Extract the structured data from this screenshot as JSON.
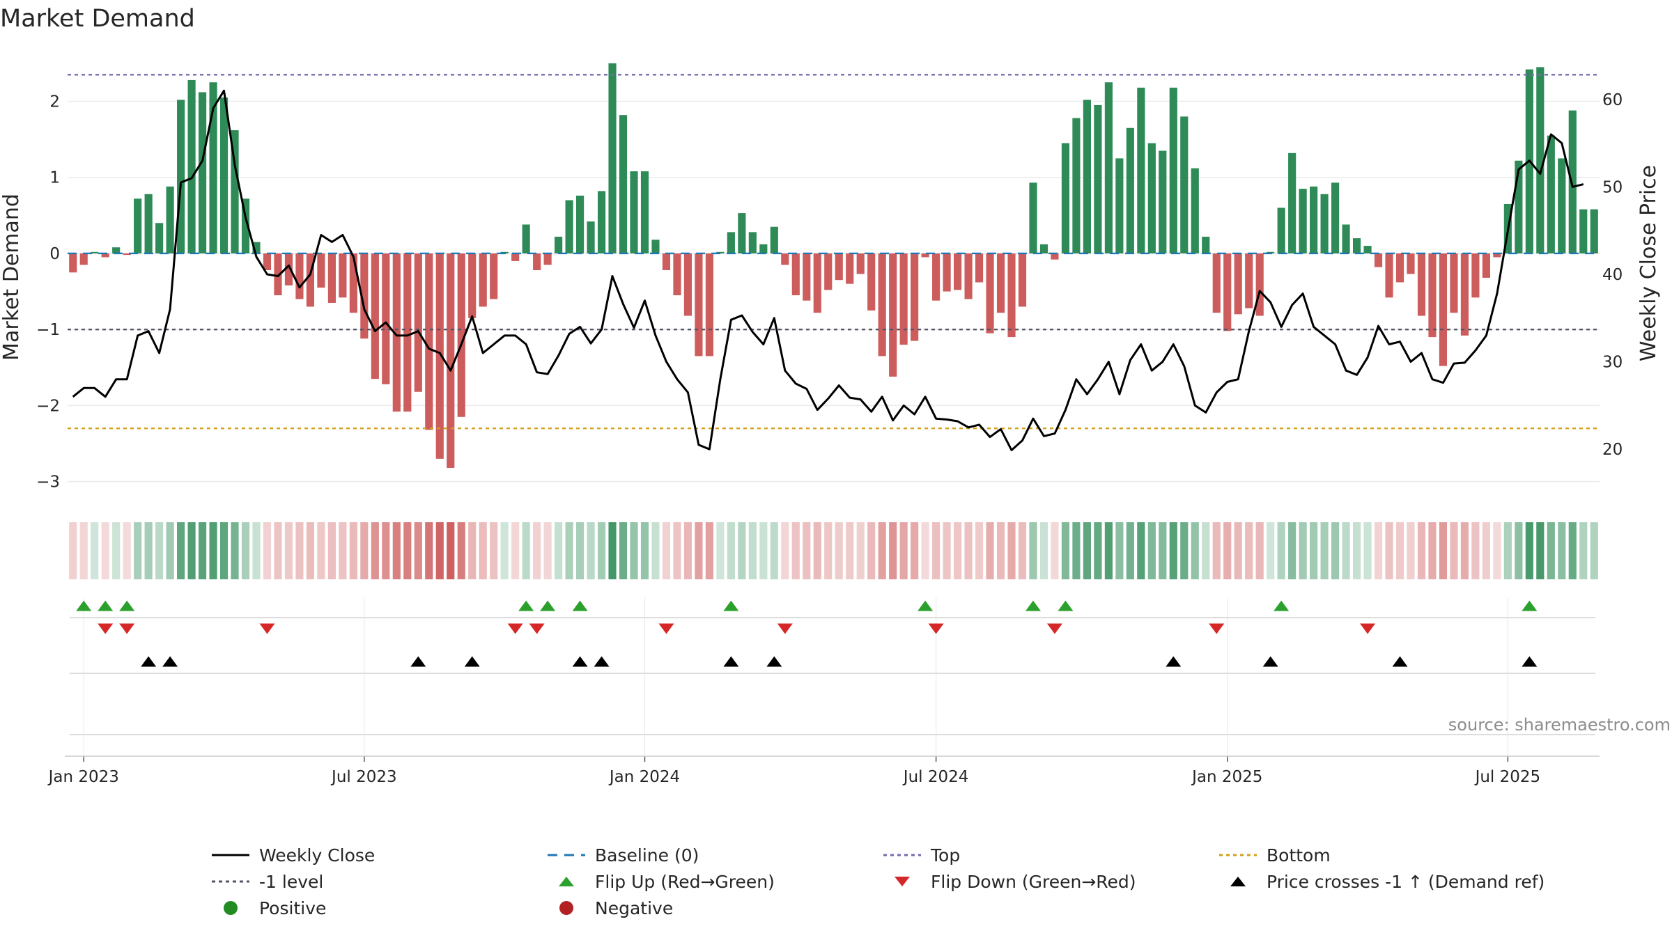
{
  "chart_data": {
    "type": "bar",
    "title": "Market Demand",
    "ylabel": "Market Demand",
    "y2label": "Weekly Close Price",
    "ylim": [
      -3.15,
      2.6
    ],
    "y2lim": [
      15,
      65
    ],
    "yticks": [
      "−3",
      "−2",
      "−1",
      "0",
      "1",
      "2"
    ],
    "y2ticks": [
      "20",
      "30",
      "40",
      "50",
      "60"
    ],
    "xticks": [
      "Jan 2023",
      "Jul 2023",
      "Jan 2024",
      "Jul 2024",
      "Jan 2025",
      "Jul 2025"
    ],
    "levels": {
      "top": 2.35,
      "minus_one": -1,
      "bottom": -2.3,
      "baseline": 0
    },
    "source": "source: sharemaestro.com",
    "colors": {
      "positive": "#2e8b57",
      "negative": "#cd5c5c",
      "close": "#000000",
      "baseline": "#1f77b4",
      "top": "#7b68b0",
      "minus_one": "#555566",
      "bottom": "#d4a017",
      "flip_up": "#2ca02c",
      "flip_down": "#d62728",
      "cross": "#000000"
    },
    "series": [
      {
        "name": "Market Demand",
        "values": [
          -0.25,
          -0.15,
          0.02,
          -0.05,
          0.08,
          -0.02,
          0.72,
          0.78,
          0.4,
          0.88,
          2.02,
          2.28,
          2.12,
          2.25,
          2.05,
          1.62,
          0.72,
          0.15,
          -0.22,
          -0.55,
          -0.42,
          -0.6,
          -0.7,
          -0.45,
          -0.65,
          -0.58,
          -0.78,
          -1.12,
          -1.65,
          -1.72,
          -2.08,
          -2.08,
          -1.82,
          -2.32,
          -2.7,
          -2.82,
          -2.15,
          -0.85,
          -0.7,
          -0.6,
          0.02,
          -0.1,
          0.38,
          -0.22,
          -0.15,
          0.22,
          0.7,
          0.76,
          0.42,
          0.82,
          2.5,
          1.82,
          1.08,
          1.08,
          0.18,
          -0.22,
          -0.55,
          -0.82,
          -1.35,
          -1.35,
          0.02,
          0.28,
          0.53,
          0.28,
          0.12,
          0.35,
          -0.15,
          -0.55,
          -0.62,
          -0.78,
          -0.48,
          -0.35,
          -0.4,
          -0.27,
          -0.75,
          -1.35,
          -1.62,
          -1.2,
          -1.15,
          -0.05,
          -0.62,
          -0.5,
          -0.48,
          -0.6,
          -0.38,
          -1.05,
          -0.78,
          -1.1,
          -0.7,
          0.93,
          0.12,
          -0.08,
          1.45,
          1.78,
          2.02,
          1.95,
          2.25,
          1.25,
          1.65,
          2.18,
          1.45,
          1.35,
          2.18,
          1.8,
          1.12,
          0.22,
          -0.78,
          -1.02,
          -0.8,
          -0.72,
          -0.82,
          0.02,
          0.6,
          1.32,
          0.85,
          0.88,
          0.78,
          0.93,
          0.38,
          0.2,
          0.1,
          -0.18,
          -0.58,
          -0.38,
          -0.27,
          -0.82,
          -1.1,
          -1.48,
          -0.78,
          -1.08,
          -0.58,
          -0.32,
          -0.05,
          0.65,
          1.22,
          2.42,
          2.45,
          1.55,
          1.25,
          1.88,
          0.58,
          0.58
        ]
      },
      {
        "name": "Weekly Close",
        "values": [
          26,
          27,
          27,
          26,
          28,
          28,
          33,
          33.5,
          31,
          36,
          50.5,
          51,
          53,
          59,
          61,
          52.5,
          46.5,
          42,
          40,
          39.8,
          41,
          38.5,
          40,
          44.5,
          43.7,
          44.5,
          42,
          36,
          33.5,
          34.5,
          33,
          33,
          33.5,
          31.5,
          31,
          29,
          32,
          35.2,
          31,
          32,
          33,
          33,
          32,
          28.8,
          28.6,
          30.7,
          33.2,
          34,
          32.1,
          33.7,
          39.8,
          36.6,
          33.9,
          37,
          33,
          30,
          28,
          26.5,
          20.5,
          20,
          28,
          34.8,
          35.3,
          33.4,
          32,
          35,
          29,
          27.5,
          26.9,
          24.5,
          25.8,
          27.3,
          25.9,
          25.7,
          24.3,
          26,
          23.3,
          25,
          24,
          26,
          23.5,
          23.4,
          23.2,
          22.5,
          22.8,
          21.4,
          22.3,
          19.9,
          21,
          23.5,
          21.5,
          21.8,
          24.5,
          28,
          26.3,
          28,
          30,
          26.3,
          30.2,
          32,
          29,
          30,
          32,
          29.5,
          25,
          24.2,
          26.5,
          27.7,
          28,
          33.5,
          38.1,
          36.8,
          34,
          36.5,
          37.8,
          34,
          33,
          32,
          29,
          28.5,
          30.5,
          34.1,
          32,
          32.3,
          30,
          31,
          28,
          27.6,
          29.8,
          29.9,
          31.3,
          33,
          37.8,
          45,
          52,
          53,
          51.5,
          56,
          55,
          50,
          50.3
        ]
      }
    ],
    "flip_up_weeks": [
      1,
      3,
      5,
      42,
      44,
      47,
      61,
      79,
      89,
      92,
      112,
      135
    ],
    "flip_down_weeks": [
      3,
      5,
      18,
      41,
      43,
      55,
      66,
      80,
      91,
      106,
      120
    ],
    "cross_weeks": [
      7,
      9,
      32,
      37,
      47,
      49,
      61,
      65,
      102,
      111,
      123,
      135
    ],
    "legend": [
      {
        "key": "close",
        "label": "Weekly Close"
      },
      {
        "key": "baseline",
        "label": "Baseline (0)"
      },
      {
        "key": "top",
        "label": "Top"
      },
      {
        "key": "bottom",
        "label": "Bottom"
      },
      {
        "key": "minus_one",
        "label": "-1 level"
      },
      {
        "key": "flip_up",
        "label": "Flip Up (Red→Green)"
      },
      {
        "key": "flip_down",
        "label": "Flip Down (Green→Red)"
      },
      {
        "key": "cross",
        "label": "Price crosses -1 ↑ (Demand ref)"
      },
      {
        "key": "positive",
        "label": "Positive"
      },
      {
        "key": "negative",
        "label": "Negative"
      }
    ]
  }
}
